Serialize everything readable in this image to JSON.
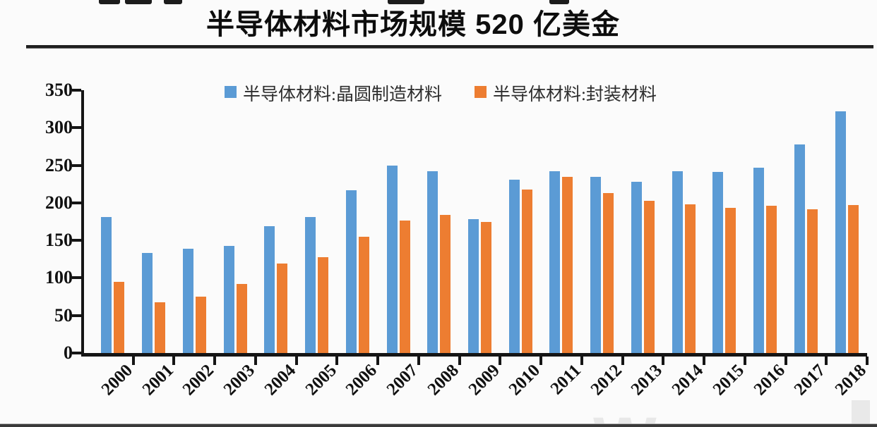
{
  "page": {
    "watermark": "We"
  },
  "chart_data": {
    "type": "bar",
    "title": "半导体材料市场规模 520 亿美金",
    "categories": [
      "2000",
      "2001",
      "2002",
      "2003",
      "2004",
      "2005",
      "2006",
      "2007",
      "2008",
      "2009",
      "2010",
      "2011",
      "2012",
      "2013",
      "2014",
      "2015",
      "2016",
      "2017",
      "2018"
    ],
    "series": [
      {
        "name": "半导体材料:晶圆制造材料",
        "color": "#5B9BD5",
        "values": [
          181,
          133,
          139,
          143,
          169,
          181,
          217,
          250,
          242,
          178,
          231,
          242,
          235,
          228,
          242,
          241,
          247,
          278,
          322
        ]
      },
      {
        "name": "半导体材料:封装材料",
        "color": "#ED7D31",
        "values": [
          95,
          68,
          75,
          92,
          119,
          128,
          155,
          176,
          184,
          175,
          218,
          235,
          213,
          203,
          198,
          193,
          196,
          191,
          197
        ]
      }
    ],
    "ylim": [
      0,
      350
    ],
    "yticks": [
      0,
      50,
      100,
      150,
      200,
      250,
      300,
      350
    ],
    "xlabel": "",
    "ylabel": "",
    "grid": false,
    "legend_position": "top",
    "axis_color": "#151515"
  }
}
